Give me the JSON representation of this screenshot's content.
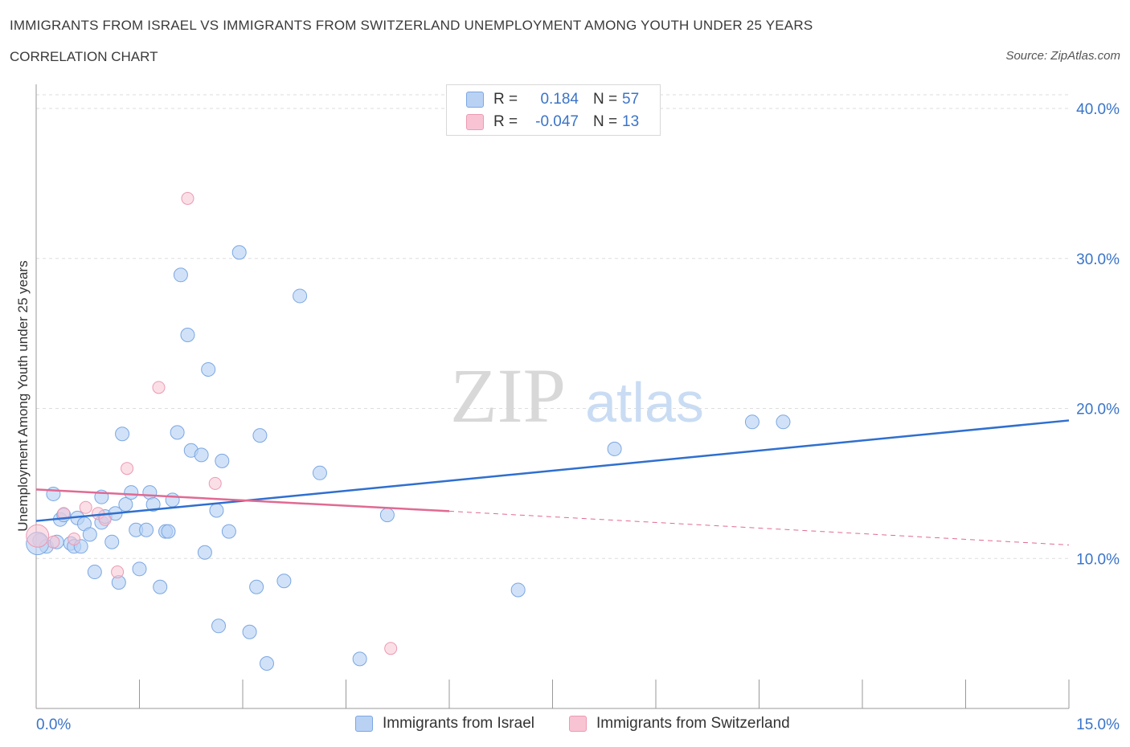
{
  "title": "IMMIGRANTS FROM ISRAEL VS IMMIGRANTS FROM SWITZERLAND UNEMPLOYMENT AMONG YOUTH UNDER 25 YEARS",
  "subtitle": "CORRELATION CHART",
  "source": "Source: ZipAtlas.com",
  "watermark": {
    "zip": "ZIP",
    "atlas": "atlas"
  },
  "colors": {
    "israel_fill": "#b9d2f4",
    "israel_stroke": "#7ba7e2",
    "israel_line": "#2f6fcf",
    "swiss_fill": "#f8c4d3",
    "swiss_stroke": "#ec9ab3",
    "swiss_line": "#e06a93",
    "axis_text": "#3a74c8",
    "grid": "#dddddd"
  },
  "legend": {
    "israel": {
      "r_label": "R =",
      "r_value": "0.184",
      "n_label": "N =",
      "n_value": "57"
    },
    "switzerland": {
      "r_label": "R =",
      "r_value": "-0.047",
      "n_label": "N =",
      "n_value": "13"
    }
  },
  "bottom_legend": {
    "israel": "Immigrants from Israel",
    "switzerland": "Immigrants from Switzerland"
  },
  "chart_data": {
    "type": "scatter",
    "xlabel": "",
    "ylabel": "Unemployment Among Youth under 25 years",
    "xlim": [
      0,
      15
    ],
    "ylim": [
      0,
      40
    ],
    "x_tick_labels": [
      "0.0%",
      "15.0%"
    ],
    "y_ticks": [
      10,
      20,
      30,
      40
    ],
    "y_tick_labels": [
      "10.0%",
      "20.0%",
      "30.0%",
      "40.0%"
    ],
    "grid": true,
    "series": [
      {
        "name": "Immigrants from Israel",
        "points": [
          [
            0.05,
            11.2
          ],
          [
            0.15,
            10.8
          ],
          [
            0.25,
            14.3
          ],
          [
            0.3,
            11.1
          ],
          [
            0.35,
            12.6
          ],
          [
            0.4,
            12.9
          ],
          [
            0.5,
            11.0
          ],
          [
            0.55,
            10.8
          ],
          [
            0.6,
            12.7
          ],
          [
            0.65,
            10.8
          ],
          [
            0.7,
            12.3
          ],
          [
            0.78,
            11.6
          ],
          [
            0.85,
            9.1
          ],
          [
            0.95,
            12.4
          ],
          [
            0.95,
            14.1
          ],
          [
            1.0,
            12.8
          ],
          [
            1.1,
            11.1
          ],
          [
            1.15,
            13.0
          ],
          [
            1.2,
            8.4
          ],
          [
            1.25,
            18.3
          ],
          [
            1.3,
            13.6
          ],
          [
            1.38,
            14.4
          ],
          [
            1.45,
            11.9
          ],
          [
            1.5,
            9.3
          ],
          [
            1.6,
            11.9
          ],
          [
            1.65,
            14.4
          ],
          [
            1.7,
            13.6
          ],
          [
            1.8,
            8.1
          ],
          [
            1.88,
            11.8
          ],
          [
            1.92,
            11.8
          ],
          [
            1.98,
            13.9
          ],
          [
            2.05,
            18.4
          ],
          [
            2.1,
            28.9
          ],
          [
            2.2,
            24.9
          ],
          [
            2.25,
            17.2
          ],
          [
            2.4,
            16.9
          ],
          [
            2.45,
            10.4
          ],
          [
            2.5,
            22.6
          ],
          [
            2.62,
            13.2
          ],
          [
            2.65,
            5.5
          ],
          [
            2.7,
            16.5
          ],
          [
            2.8,
            11.8
          ],
          [
            2.95,
            30.4
          ],
          [
            3.1,
            5.1
          ],
          [
            3.2,
            8.1
          ],
          [
            3.25,
            18.2
          ],
          [
            3.35,
            3.0
          ],
          [
            3.6,
            8.5
          ],
          [
            3.83,
            27.5
          ],
          [
            4.12,
            15.7
          ],
          [
            4.7,
            3.3
          ],
          [
            5.1,
            12.9
          ],
          [
            7.0,
            7.9
          ],
          [
            8.4,
            17.3
          ],
          [
            10.4,
            19.1
          ],
          [
            10.85,
            19.1
          ],
          [
            0.02,
            11.0
          ]
        ],
        "trend": {
          "x": [
            0,
            15
          ],
          "y": [
            12.5,
            19.2
          ]
        }
      },
      {
        "name": "Immigrants from Switzerland",
        "points": [
          [
            0.02,
            11.5
          ],
          [
            0.25,
            11.1
          ],
          [
            0.4,
            13.0
          ],
          [
            0.55,
            11.3
          ],
          [
            0.72,
            13.4
          ],
          [
            0.9,
            13.0
          ],
          [
            1.0,
            12.6
          ],
          [
            1.18,
            9.1
          ],
          [
            1.32,
            16.0
          ],
          [
            1.78,
            21.4
          ],
          [
            2.2,
            34.0
          ],
          [
            2.6,
            15.0
          ],
          [
            5.15,
            4.0
          ]
        ],
        "trend_solid": {
          "x": [
            0,
            6.0
          ],
          "y": [
            14.6,
            13.15
          ]
        },
        "trend_dashed": {
          "x": [
            6.0,
            15
          ],
          "y": [
            13.15,
            10.9
          ]
        }
      }
    ]
  }
}
